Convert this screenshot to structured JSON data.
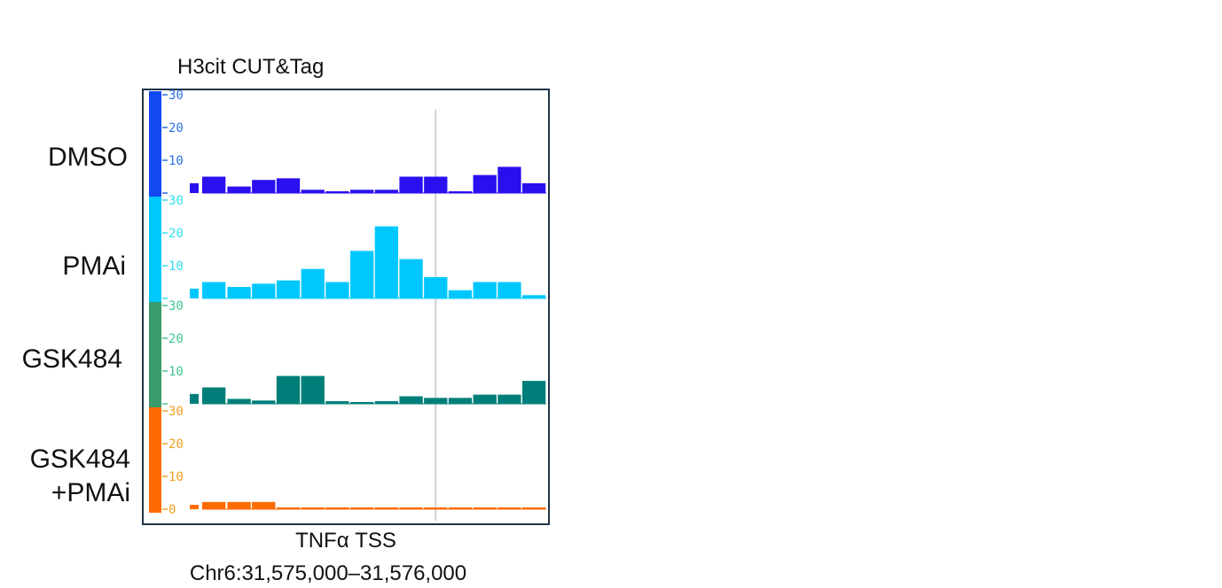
{
  "chart_data": {
    "type": "bar",
    "title": "H3cit CUT&Tag",
    "xlabel": "TNFα TSS",
    "region": "Chr6:31,575,000–31,576,000",
    "ylim": [
      0,
      30
    ],
    "yticks": [
      10,
      20,
      30
    ],
    "bin_count": 14,
    "tss_bin_position": 9.5,
    "series": [
      {
        "name": "DMSO",
        "color": "#2a0ff0",
        "axis_color": "#1248f0",
        "tick_color": "#2b6fe8",
        "values": [
          5,
          2,
          4,
          4.5,
          1,
          0.5,
          1,
          1,
          5,
          5,
          0.5,
          5.5,
          8,
          3
        ]
      },
      {
        "name": "PMAi",
        "color": "#00c8ff",
        "axis_color": "#00c8ff",
        "tick_color": "#30e0f0",
        "values": [
          5,
          3.5,
          4.5,
          5.5,
          9,
          5,
          14.5,
          22,
          12,
          6.5,
          2.5,
          5,
          5,
          1
        ]
      },
      {
        "name": "GSK484",
        "color": "#007f7a",
        "axis_color": "#3a9a6a",
        "tick_color": "#40c890",
        "values": [
          5,
          1.5,
          1,
          8.5,
          8.5,
          0.8,
          0.3,
          0.8,
          2.3,
          1.8,
          1.8,
          2.8,
          2.8,
          7
        ]
      },
      {
        "name": "GSK484\n+PMAi",
        "color": "#ff6a00",
        "axis_color": "#ff6a00",
        "tick_color": "#f0a020",
        "values": [
          2.2,
          2.2,
          2.2,
          0.5,
          0.5,
          0.5,
          0.5,
          0.5,
          0.5,
          0.5,
          0.5,
          0.5,
          0.5,
          0.5
        ]
      }
    ]
  },
  "labels": {
    "dmso": "DMSO",
    "pmai": "PMAi",
    "gsk": "GSK484",
    "gsk_pmai_line1": "GSK484",
    "gsk_pmai_line2": "+PMAi"
  }
}
